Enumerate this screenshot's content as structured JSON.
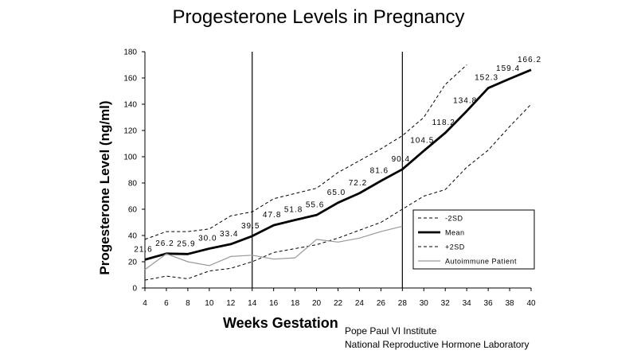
{
  "chart_data": {
    "type": "line",
    "title": "Progesterone Levels in Pregnancy",
    "xlabel": "Weeks Gestation",
    "ylabel": "Progesterone Level (ng/ml)",
    "xlim": [
      4,
      40
    ],
    "ylim": [
      0,
      180
    ],
    "x_ticks": [
      4,
      6,
      8,
      10,
      12,
      14,
      16,
      18,
      20,
      22,
      24,
      26,
      28,
      30,
      32,
      34,
      36,
      38,
      40
    ],
    "y_ticks": [
      0,
      20,
      40,
      60,
      80,
      100,
      120,
      140,
      160,
      180
    ],
    "vertical_lines_x": [
      14,
      28
    ],
    "series": [
      {
        "name": "-2SD",
        "style": "dashed",
        "color": "#000000",
        "points": [
          [
            4,
            6
          ],
          [
            6,
            9
          ],
          [
            8,
            7
          ],
          [
            10,
            13
          ],
          [
            12,
            15
          ],
          [
            14,
            20
          ],
          [
            16,
            27
          ],
          [
            18,
            30
          ],
          [
            20,
            33
          ],
          [
            22,
            38
          ],
          [
            24,
            44
          ],
          [
            26,
            50
          ],
          [
            28,
            60
          ],
          [
            30,
            70
          ],
          [
            32,
            75
          ],
          [
            34,
            92
          ],
          [
            36,
            105
          ],
          [
            38,
            123
          ],
          [
            40,
            140
          ]
        ]
      },
      {
        "name": "Mean",
        "style": "solid-bold",
        "color": "#000000",
        "points": [
          [
            4,
            21.6
          ],
          [
            6,
            26.2
          ],
          [
            8,
            25.9
          ],
          [
            10,
            30.0
          ],
          [
            12,
            33.4
          ],
          [
            14,
            39.5
          ],
          [
            16,
            47.8
          ],
          [
            18,
            51.8
          ],
          [
            20,
            55.6
          ],
          [
            22,
            65.0
          ],
          [
            24,
            72.2
          ],
          [
            26,
            81.6
          ],
          [
            28,
            90.4
          ],
          [
            30,
            104.5
          ],
          [
            32,
            118.2
          ],
          [
            34,
            134.8
          ],
          [
            36,
            152.3
          ],
          [
            38,
            159.4
          ],
          [
            40,
            166.2
          ]
        ]
      },
      {
        "name": "+2SD",
        "style": "dashed",
        "color": "#000000",
        "points": [
          [
            4,
            37
          ],
          [
            6,
            43
          ],
          [
            8,
            43
          ],
          [
            10,
            45
          ],
          [
            12,
            55
          ],
          [
            14,
            58
          ],
          [
            16,
            68
          ],
          [
            18,
            72
          ],
          [
            20,
            76
          ],
          [
            22,
            88
          ],
          [
            24,
            97
          ],
          [
            26,
            106
          ],
          [
            28,
            116
          ],
          [
            30,
            130
          ],
          [
            32,
            155
          ],
          [
            34,
            170
          ]
        ]
      },
      {
        "name": "Autoimmune Patient",
        "style": "solid-thin",
        "color": "#999999",
        "points": [
          [
            4,
            14
          ],
          [
            6,
            26
          ],
          [
            8,
            20
          ],
          [
            10,
            17
          ],
          [
            12,
            24
          ],
          [
            14,
            25
          ],
          [
            16,
            22
          ],
          [
            18,
            23
          ],
          [
            20,
            37
          ],
          [
            22,
            35
          ],
          [
            24,
            38
          ],
          [
            26,
            43
          ],
          [
            28,
            47
          ]
        ]
      }
    ],
    "mean_labels": [
      "21.6",
      "26.2",
      "25.9",
      "30.0",
      "33.4",
      "39.5",
      "47.8",
      "51.8",
      "55.6",
      "65.0",
      "72.2",
      "81.6",
      "90.4",
      "104.5",
      "118.2",
      "134.8",
      "152.3",
      "159.4",
      "166.2"
    ],
    "legend_position": "lower-right"
  },
  "credits": {
    "line1": "Pope Paul VI Institute",
    "line2": "National Reproductive Hormone Laboratory"
  }
}
